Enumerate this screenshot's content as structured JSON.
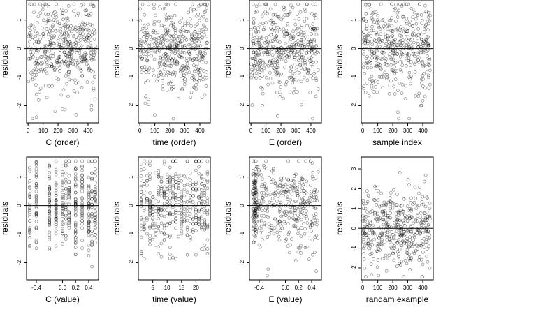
{
  "figure": {
    "grid": "2x4",
    "point_style": "open circle",
    "point_color": "#000000",
    "reference_line": 0
  },
  "chart_data": [
    {
      "type": "scatter",
      "title": "",
      "xlabel": "C (order)",
      "ylabel": "residuals",
      "xlim": [
        -10,
        470
      ],
      "ylim": [
        -2.6,
        1.7
      ],
      "xticks": [
        {
          "v": 0,
          "label": "0"
        },
        {
          "v": 100,
          "label": "100"
        },
        {
          "v": 200,
          "label": "200"
        },
        {
          "v": 300,
          "label": "300"
        },
        {
          "v": 400,
          "label": "400"
        }
      ],
      "yticks": [
        {
          "v": -2,
          "label": "-2"
        },
        {
          "v": -1,
          "label": "-1"
        },
        {
          "v": 0,
          "label": "0"
        },
        {
          "v": 1,
          "label": "1"
        }
      ],
      "hline": 0,
      "x_kind": "uniform",
      "x_range": [
        0,
        450
      ],
      "y_dist": "std",
      "n": 450
    },
    {
      "type": "scatter",
      "title": "",
      "xlabel": "time (order)",
      "ylabel": "residuals",
      "xlim": [
        -10,
        470
      ],
      "ylim": [
        -2.6,
        1.7
      ],
      "xticks": [
        {
          "v": 0,
          "label": "0"
        },
        {
          "v": 100,
          "label": "100"
        },
        {
          "v": 200,
          "label": "200"
        },
        {
          "v": 300,
          "label": "300"
        },
        {
          "v": 400,
          "label": "400"
        }
      ],
      "yticks": [
        {
          "v": -2,
          "label": "-2"
        },
        {
          "v": -1,
          "label": "-1"
        },
        {
          "v": 0,
          "label": "0"
        },
        {
          "v": 1,
          "label": "1"
        }
      ],
      "hline": 0,
      "x_kind": "uniform",
      "x_range": [
        0,
        450
      ],
      "y_dist": "std",
      "n": 450
    },
    {
      "type": "scatter",
      "title": "",
      "xlabel": "E (order)",
      "ylabel": "residuals",
      "xlim": [
        -10,
        470
      ],
      "ylim": [
        -2.6,
        1.7
      ],
      "xticks": [
        {
          "v": 0,
          "label": "0"
        },
        {
          "v": 100,
          "label": "100"
        },
        {
          "v": 200,
          "label": "200"
        },
        {
          "v": 300,
          "label": "300"
        },
        {
          "v": 400,
          "label": "400"
        }
      ],
      "yticks": [
        {
          "v": -2,
          "label": "-2"
        },
        {
          "v": -1,
          "label": "-1"
        },
        {
          "v": 0,
          "label": "0"
        },
        {
          "v": 1,
          "label": "1"
        }
      ],
      "hline": 0,
      "x_kind": "uniform",
      "x_range": [
        0,
        450
      ],
      "y_dist": "std",
      "n": 450
    },
    {
      "type": "scatter",
      "title": "",
      "xlabel": "sample index",
      "ylabel": "residuals",
      "xlim": [
        -10,
        470
      ],
      "ylim": [
        -2.6,
        1.7
      ],
      "xticks": [
        {
          "v": 0,
          "label": "0"
        },
        {
          "v": 100,
          "label": "100"
        },
        {
          "v": 200,
          "label": "200"
        },
        {
          "v": 300,
          "label": "300"
        },
        {
          "v": 400,
          "label": "400"
        }
      ],
      "yticks": [
        {
          "v": -2,
          "label": "-2"
        },
        {
          "v": -1,
          "label": "-1"
        },
        {
          "v": 0,
          "label": "0"
        },
        {
          "v": 1,
          "label": "1"
        }
      ],
      "hline": 0,
      "x_kind": "uniform",
      "x_range": [
        0,
        450
      ],
      "y_dist": "std",
      "n": 450
    },
    {
      "type": "scatter",
      "title": "",
      "xlabel": "C (value)",
      "ylabel": "residuals",
      "xlim": [
        -0.55,
        0.55
      ],
      "ylim": [
        -2.6,
        1.7
      ],
      "xticks": [
        {
          "v": -0.4,
          "label": "-0.4"
        },
        {
          "v": 0.0,
          "label": "0.0"
        },
        {
          "v": 0.2,
          "label": "0.2"
        },
        {
          "v": 0.4,
          "label": "0.4"
        }
      ],
      "yticks": [
        {
          "v": -2,
          "label": "-2"
        },
        {
          "v": -1,
          "label": "-1"
        },
        {
          "v": 0,
          "label": "0"
        },
        {
          "v": 1,
          "label": "1"
        }
      ],
      "hline": 0,
      "x_kind": "levels",
      "x_levels": [
        -0.5,
        -0.4,
        -0.2,
        -0.1,
        0.0,
        0.05,
        0.1,
        0.2,
        0.3,
        0.4,
        0.45,
        0.5
      ],
      "y_dist": "std",
      "n": 450
    },
    {
      "type": "scatter",
      "title": "",
      "xlabel": "time (value)",
      "ylabel": "residuals",
      "xlim": [
        0,
        25
      ],
      "ylim": [
        -2.6,
        1.7
      ],
      "xticks": [
        {
          "v": 5,
          "label": "5"
        },
        {
          "v": 10,
          "label": "10"
        },
        {
          "v": 15,
          "label": "15"
        },
        {
          "v": 20,
          "label": "20"
        }
      ],
      "yticks": [
        {
          "v": -2,
          "label": "-2"
        },
        {
          "v": -1,
          "label": "-1"
        },
        {
          "v": 0,
          "label": "0"
        },
        {
          "v": 1,
          "label": "1"
        }
      ],
      "hline": 0,
      "x_kind": "levels",
      "x_levels": [
        1,
        2,
        3,
        4,
        5,
        6,
        7,
        8,
        9,
        10,
        11,
        12,
        13,
        14,
        15,
        16,
        17,
        18,
        19,
        20,
        21,
        22,
        23,
        24
      ],
      "y_dist": "std",
      "n": 450
    },
    {
      "type": "scatter",
      "title": "",
      "xlabel": "E (value)",
      "ylabel": "residuals",
      "xlim": [
        -0.55,
        0.55
      ],
      "ylim": [
        -2.6,
        1.7
      ],
      "xticks": [
        {
          "v": -0.4,
          "label": "-0.4"
        },
        {
          "v": 0.0,
          "label": "0.0"
        },
        {
          "v": 0.2,
          "label": "0.2"
        },
        {
          "v": 0.4,
          "label": "0.4"
        }
      ],
      "yticks": [
        {
          "v": -2,
          "label": "-2"
        },
        {
          "v": -1,
          "label": "-1"
        },
        {
          "v": 0,
          "label": "0"
        },
        {
          "v": 1,
          "label": "1"
        }
      ],
      "hline": 0,
      "x_kind": "uniform_dense_left",
      "x_range": [
        -0.5,
        0.5
      ],
      "y_dist": "std",
      "n": 450
    },
    {
      "type": "scatter",
      "title": "",
      "xlabel": "randam example",
      "ylabel": "residuals",
      "xlim": [
        -10,
        470
      ],
      "ylim": [
        -2.6,
        3.6
      ],
      "xticks": [
        {
          "v": 0,
          "label": "0"
        },
        {
          "v": 100,
          "label": "100"
        },
        {
          "v": 200,
          "label": "200"
        },
        {
          "v": 300,
          "label": "300"
        },
        {
          "v": 400,
          "label": "400"
        }
      ],
      "yticks": [
        {
          "v": -2,
          "label": "-2"
        },
        {
          "v": -1,
          "label": "-1"
        },
        {
          "v": 0,
          "label": "0"
        },
        {
          "v": 1,
          "label": "1"
        },
        {
          "v": 2,
          "label": "2"
        },
        {
          "v": 3,
          "label": "3"
        }
      ],
      "hline": 0,
      "x_kind": "uniform",
      "x_range": [
        0,
        450
      ],
      "y_dist": "normal",
      "n": 450
    }
  ]
}
